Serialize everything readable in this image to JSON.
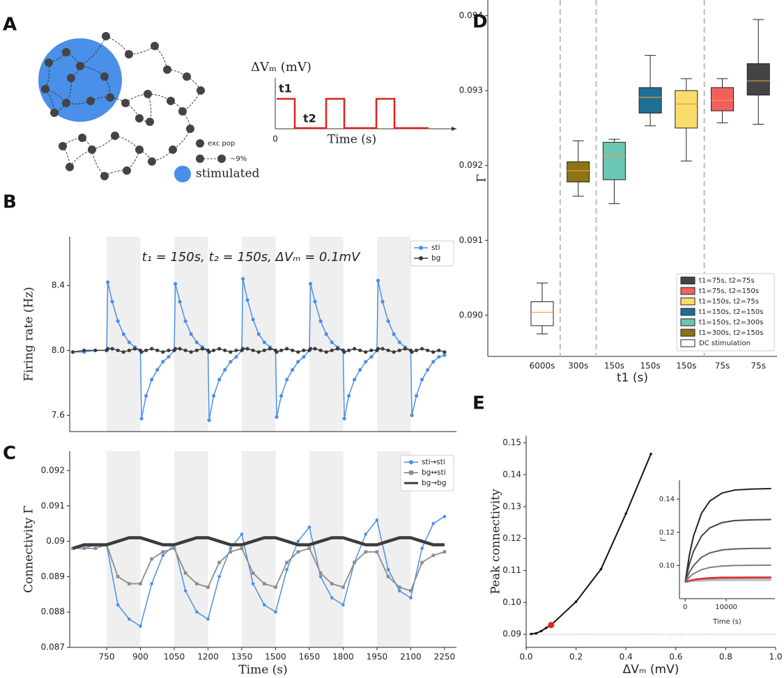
{
  "diagram": {
    "panel": "A",
    "y_label": "ΔVₘ (mV)",
    "t1": "t1",
    "t2": "t2",
    "origin": "0",
    "x_label": "Time (s)",
    "legend": {
      "node": "exc pop",
      "edge": "∼9%",
      "stimulated": "stimulated"
    }
  },
  "chart_data": [
    {
      "type": "line",
      "panel": "B",
      "annotation": "t₁ = 150s, t₂ = 150s, ΔVₘ = 0.1mV",
      "ylabel": "Firing rate (Hz)",
      "x": [
        600,
        650,
        700,
        750,
        755,
        775,
        800,
        825,
        850,
        875,
        900,
        905,
        925,
        950,
        975,
        1000,
        1025,
        1050,
        1055,
        1075,
        1100,
        1125,
        1150,
        1175,
        1200,
        1205,
        1225,
        1250,
        1275,
        1300,
        1325,
        1350,
        1355,
        1375,
        1400,
        1425,
        1450,
        1475,
        1500,
        1505,
        1525,
        1550,
        1575,
        1600,
        1625,
        1650,
        1655,
        1675,
        1700,
        1725,
        1750,
        1775,
        1800,
        1805,
        1825,
        1850,
        1875,
        1900,
        1925,
        1950,
        1955,
        1975,
        2000,
        2025,
        2050,
        2075,
        2100,
        2105,
        2125,
        2150,
        2175,
        2200,
        2225,
        2250
      ],
      "series": [
        {
          "name": "sti",
          "color": "#4a8fe8",
          "marker": "o",
          "values": [
            7.99,
            7.99,
            8.0,
            8.0,
            8.42,
            8.3,
            8.18,
            8.1,
            8.05,
            8.02,
            8.0,
            7.58,
            7.72,
            7.82,
            7.88,
            7.93,
            7.96,
            8.0,
            8.41,
            8.3,
            8.18,
            8.1,
            8.05,
            8.02,
            8.0,
            7.57,
            7.72,
            7.82,
            7.88,
            7.93,
            7.96,
            8.0,
            8.44,
            8.31,
            8.19,
            8.1,
            8.05,
            8.02,
            8.0,
            7.59,
            7.72,
            7.82,
            7.88,
            7.93,
            7.96,
            8.0,
            8.41,
            8.3,
            8.18,
            8.1,
            8.05,
            8.02,
            8.0,
            7.58,
            7.72,
            7.82,
            7.88,
            7.93,
            7.96,
            8.0,
            8.43,
            8.3,
            8.18,
            8.1,
            8.05,
            8.02,
            8.0,
            7.6,
            7.72,
            7.82,
            7.88,
            7.93,
            7.96,
            7.97
          ]
        },
        {
          "name": "bg",
          "color": "#3c3c3c",
          "marker": "o",
          "values": [
            7.99,
            8.0,
            8.0,
            8.0,
            8.01,
            8.01,
            8.0,
            7.99,
            8.0,
            8.01,
            8.0,
            7.99,
            8.0,
            8.01,
            8.0,
            7.99,
            8.0,
            8.0,
            8.01,
            8.01,
            8.0,
            7.99,
            8.0,
            8.01,
            8.0,
            7.99,
            8.0,
            8.01,
            8.0,
            7.99,
            8.0,
            8.0,
            8.01,
            8.01,
            8.0,
            7.99,
            8.0,
            8.01,
            8.0,
            7.99,
            8.0,
            8.01,
            8.0,
            7.99,
            8.0,
            8.0,
            8.01,
            8.01,
            8.0,
            7.99,
            8.0,
            8.01,
            8.0,
            7.99,
            8.0,
            8.01,
            8.0,
            7.99,
            8.0,
            8.0,
            8.01,
            8.01,
            8.0,
            7.99,
            8.0,
            8.01,
            8.0,
            7.99,
            8.0,
            8.01,
            8.0,
            7.99,
            8.0,
            7.99
          ]
        }
      ],
      "shaded": [
        [
          750,
          900
        ],
        [
          1050,
          1200
        ],
        [
          1350,
          1500
        ],
        [
          1650,
          1800
        ],
        [
          1950,
          2100
        ]
      ],
      "xlim": [
        586,
        2303
      ],
      "ylim": [
        7.5,
        8.7
      ],
      "yticks": [
        7.6,
        {
          "value": 8,
          "label": "8.0"
        },
        8.4
      ],
      "legend": "upper right"
    },
    {
      "type": "line",
      "panel": "C",
      "xlabel": "Time (s)",
      "ylabel": "Connectivity Γ",
      "x": [
        600,
        650,
        700,
        750,
        800,
        850,
        900,
        950,
        1000,
        1050,
        1100,
        1150,
        1200,
        1250,
        1300,
        1350,
        1400,
        1450,
        1500,
        1550,
        1600,
        1650,
        1700,
        1750,
        1800,
        1850,
        1900,
        1950,
        2000,
        2050,
        2100,
        2150,
        2200,
        2250
      ],
      "series": [
        {
          "name": "sti→sti",
          "color": "#4a8fe8",
          "marker": "o",
          "values": [
            0.0898,
            0.0898,
            0.0899,
            0.0899,
            0.0882,
            0.0878,
            0.0876,
            0.0888,
            0.0896,
            0.0899,
            0.0886,
            0.088,
            0.0878,
            0.089,
            0.0898,
            0.0902,
            0.0888,
            0.0882,
            0.088,
            0.0892,
            0.09,
            0.0904,
            0.089,
            0.0884,
            0.0882,
            0.0894,
            0.0902,
            0.0906,
            0.0892,
            0.0886,
            0.0884,
            0.0898,
            0.0905,
            0.0907
          ]
        },
        {
          "name": "bg↔sti",
          "color": "#8c8c8c",
          "marker": "s",
          "values": [
            0.0898,
            0.0898,
            0.0898,
            0.0899,
            0.089,
            0.0888,
            0.0888,
            0.0895,
            0.0897,
            0.0898,
            0.0891,
            0.0888,
            0.0887,
            0.0894,
            0.0897,
            0.0898,
            0.0891,
            0.0888,
            0.0887,
            0.0894,
            0.0897,
            0.0898,
            0.0891,
            0.0888,
            0.0887,
            0.0894,
            0.0897,
            0.0897,
            0.089,
            0.0887,
            0.0886,
            0.0894,
            0.0896,
            0.0897
          ]
        },
        {
          "name": "bg→bg",
          "color": "#3c3c3c",
          "values": [
            0.0898,
            0.0899,
            0.0899,
            0.0899,
            0.09,
            0.0901,
            0.0901,
            0.09,
            0.0899,
            0.0899,
            0.09,
            0.0901,
            0.0901,
            0.09,
            0.0899,
            0.0899,
            0.09,
            0.0901,
            0.0901,
            0.09,
            0.0899,
            0.0899,
            0.09,
            0.0901,
            0.0901,
            0.09,
            0.0899,
            0.0899,
            0.09,
            0.0901,
            0.0901,
            0.09,
            0.0899,
            0.0899
          ]
        }
      ],
      "shaded": [
        [
          750,
          900
        ],
        [
          1050,
          1200
        ],
        [
          1350,
          1500
        ],
        [
          1650,
          1800
        ],
        [
          1950,
          2100
        ]
      ],
      "xlim": [
        586,
        2303
      ],
      "ylim": [
        0.087,
        0.09255
      ],
      "xticks": [
        750,
        900,
        1050,
        1200,
        1350,
        1500,
        1650,
        1800,
        1950,
        2100,
        2250
      ],
      "yticks": [
        0.087,
        0.088,
        0.089,
        0.09,
        0.091,
        0.092
      ],
      "legend": "upper right"
    },
    {
      "type": "box",
      "panel": "D",
      "xlabel": "t1 (s)",
      "ylabel": "Γ",
      "median_color": "#f39c3c",
      "categories": [
        "6000s",
        "300s",
        "150s",
        "150s",
        "150s",
        "75s",
        "75s"
      ],
      "boxes": [
        {
          "name": "DC stimulation",
          "color": "#ffffff",
          "whislo": 0.08975,
          "q1": 0.08986,
          "med": 0.09004,
          "q3": 0.09018,
          "whishi": 0.09043
        },
        {
          "name": "t1=300s, t2=150s",
          "color": "#8a7512",
          "whislo": 0.09159,
          "q1": 0.09178,
          "med": 0.09193,
          "q3": 0.09205,
          "whishi": 0.09233
        },
        {
          "name": "t1=150s, t2=300s",
          "color": "#6cc6b4",
          "whislo": 0.09149,
          "q1": 0.09181,
          "med": 0.09213,
          "q3": 0.09231,
          "whishi": 0.09235
        },
        {
          "name": "t1=150s, t2=150s",
          "color": "#1f6e93",
          "whislo": 0.09253,
          "q1": 0.0927,
          "med": 0.09291,
          "q3": 0.09304,
          "whishi": 0.09347
        },
        {
          "name": "t1=150s, t2=75s",
          "color": "#f9dc6b",
          "whislo": 0.09206,
          "q1": 0.0925,
          "med": 0.09282,
          "q3": 0.093,
          "whishi": 0.09316
        },
        {
          "name": "t1=75s, t2=150s",
          "color": "#f0605d",
          "whislo": 0.09257,
          "q1": 0.09273,
          "med": 0.09287,
          "q3": 0.09304,
          "whishi": 0.09316
        },
        {
          "name": "t1=75s, t2=75s",
          "color": "#444444",
          "whislo": 0.09255,
          "q1": 0.09294,
          "med": 0.09313,
          "q3": 0.09336,
          "whishi": 0.09395
        }
      ],
      "ylim": [
        0.08945,
        0.09421
      ],
      "yticks": [
        {
          "value": 0.09,
          "label": "0.090"
        },
        0.091,
        0.092,
        0.093,
        0.094
      ],
      "legend": "lower right"
    },
    {
      "type": "line",
      "panel": "E",
      "xlabel": "ΔVₘ (mV)",
      "ylabel": "Peak connectivity",
      "x": [
        0.02,
        0.04,
        0.06,
        0.08,
        0.1,
        0.2,
        0.3,
        0.4,
        0.5
      ],
      "series": [
        {
          "color": "#111111",
          "marker": "o",
          "values": [
            0.0901,
            0.0903,
            0.091,
            0.092,
            0.0929,
            0.1002,
            0.1104,
            0.1278,
            0.1465
          ]
        }
      ],
      "highlight": {
        "x": 0.1,
        "y": 0.0929,
        "color": "#e8261f"
      },
      "hline": 0.09,
      "xlim": [
        0,
        1
      ],
      "ylim": [
        0.0859,
        0.1522
      ],
      "xticks": [
        {
          "value": 0,
          "label": "0.0"
        },
        0.2,
        0.4,
        0.6,
        0.8,
        {
          "value": 1,
          "label": "1.0"
        }
      ],
      "yticks": [
        0.09,
        {
          "value": 0.1,
          "label": "0.10"
        },
        0.11,
        0.12,
        0.13,
        0.14,
        0.15
      ]
    },
    {
      "type": "line",
      "xlabel": "Time (s)",
      "ylabel": "Γ",
      "x": [
        0,
        1000,
        2000,
        4000,
        6000,
        9000,
        12000,
        16000,
        21000
      ],
      "series": [
        {
          "color": "#222222",
          "values": [
            0.09,
            0.106,
            0.1175,
            0.1316,
            0.1389,
            0.1437,
            0.1455,
            0.1461,
            0.1464
          ]
        },
        {
          "color": "#444444",
          "values": [
            0.09,
            0.1007,
            0.1084,
            0.1178,
            0.1227,
            0.1259,
            0.1271,
            0.1275,
            0.1277
          ]
        },
        {
          "color": "#606060",
          "values": [
            0.09,
            0.0958,
            0.0999,
            0.105,
            0.1076,
            0.1094,
            0.11,
            0.1103,
            0.1104
          ]
        },
        {
          "color": "#808080",
          "values": [
            0.09,
            0.0929,
            0.095,
            0.0975,
            0.0988,
            0.0997,
            0.1,
            0.1001,
            0.1002
          ]
        },
        {
          "color": "#9c9c9c",
          "values": [
            0.09,
            0.0906,
            0.091,
            0.0915,
            0.0917,
            0.0919,
            0.092,
            0.092,
            0.092
          ]
        },
        {
          "color": "#bdbdbd",
          "values": [
            0.09,
            0.0903,
            0.0905,
            0.0907,
            0.0909,
            0.091,
            0.091,
            0.091,
            0.091
          ]
        },
        {
          "color": "#e0201b",
          "values": [
            0.09,
            0.0908,
            0.0914,
            0.0921,
            0.0925,
            0.0928,
            0.0928,
            0.0929,
            0.0929
          ]
        }
      ],
      "xlim": [
        -1400,
        21900
      ],
      "ylim": [
        0.08,
        0.1514
      ],
      "xticks": [
        0,
        10000
      ],
      "yticks": [
        {
          "value": 0.1,
          "label": "0.10"
        },
        0.12,
        0.14
      ]
    }
  ]
}
